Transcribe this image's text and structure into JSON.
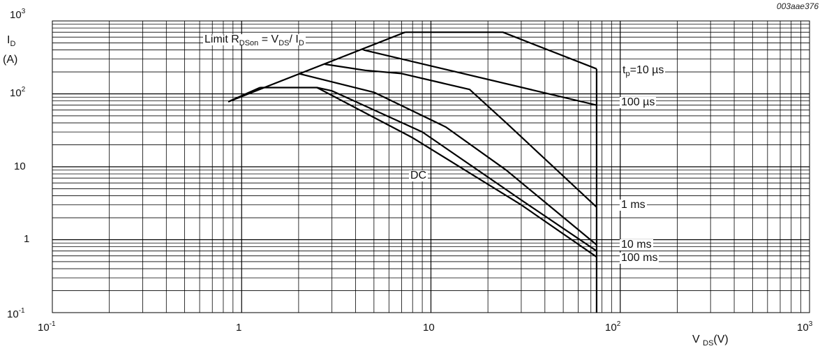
{
  "chart_data": {
    "type": "line",
    "x_scale": "log",
    "y_scale": "log",
    "xlim": [
      0.1,
      1000
    ],
    "ylim": [
      0.1,
      1000
    ],
    "grid": true,
    "reference_code": "003aae376",
    "y_label": {
      "main": "I",
      "sub": "D",
      "unit": "(A)"
    },
    "x_label": {
      "main": "V",
      "sub": "DS",
      "unit": "(V)"
    },
    "x_ticks": [
      {
        "base": "10",
        "exp": "-1"
      },
      {
        "base": "1",
        "exp": ""
      },
      {
        "base": "10",
        "exp": ""
      },
      {
        "base": "10",
        "exp": "2"
      },
      {
        "base": "10",
        "exp": "3"
      }
    ],
    "y_ticks": [
      {
        "base": "10",
        "exp": "-1"
      },
      {
        "base": "1",
        "exp": ""
      },
      {
        "base": "10",
        "exp": ""
      },
      {
        "base": "10",
        "exp": "2"
      },
      {
        "base": "10",
        "exp": "3"
      }
    ],
    "annotations": {
      "limit": {
        "prefix": "Limit R",
        "sub1": "DSon",
        "mid": " = V",
        "sub2": "DS",
        "mid2": "/ I",
        "sub3": "D"
      },
      "tp": {
        "prefix": "t",
        "sub": "p",
        "suffix": "=10 µs"
      },
      "dc": "DC",
      "labels_right": [
        "100 µs",
        "1 ms",
        "10 ms",
        "100 ms"
      ]
    },
    "series": [
      {
        "points": [
          [
            0.85,
            78
          ],
          [
            7.3,
            700
          ]
        ]
      },
      {
        "points": [
          [
            7.3,
            700
          ],
          [
            24,
            700
          ],
          [
            75,
            220
          ]
        ]
      },
      {
        "points": [
          [
            4.4,
            400
          ],
          [
            75,
            70
          ]
        ]
      },
      {
        "points": [
          [
            2.75,
            255
          ],
          [
            4.5,
            210
          ],
          [
            7,
            190
          ],
          [
            16,
            115
          ],
          [
            25,
            40
          ],
          [
            75,
            2.8
          ]
        ]
      },
      {
        "points": [
          [
            2,
            190
          ],
          [
            5,
            105
          ],
          [
            12,
            35
          ],
          [
            25,
            9
          ],
          [
            75,
            0.85
          ]
        ]
      },
      {
        "points": [
          [
            1.25,
            122
          ],
          [
            2.5,
            122
          ],
          [
            3,
            110
          ],
          [
            9,
            30
          ],
          [
            30,
            3.5
          ],
          [
            75,
            0.7
          ]
        ]
      },
      {
        "points": [
          [
            0.85,
            78
          ],
          [
            1.25,
            122
          ]
        ]
      },
      {
        "points": [
          [
            2.5,
            122
          ],
          [
            8,
            25
          ],
          [
            30,
            3
          ],
          [
            75,
            0.58
          ]
        ]
      },
      {
        "points": [
          [
            75,
            0.1
          ],
          [
            75,
            220
          ]
        ]
      }
    ]
  }
}
